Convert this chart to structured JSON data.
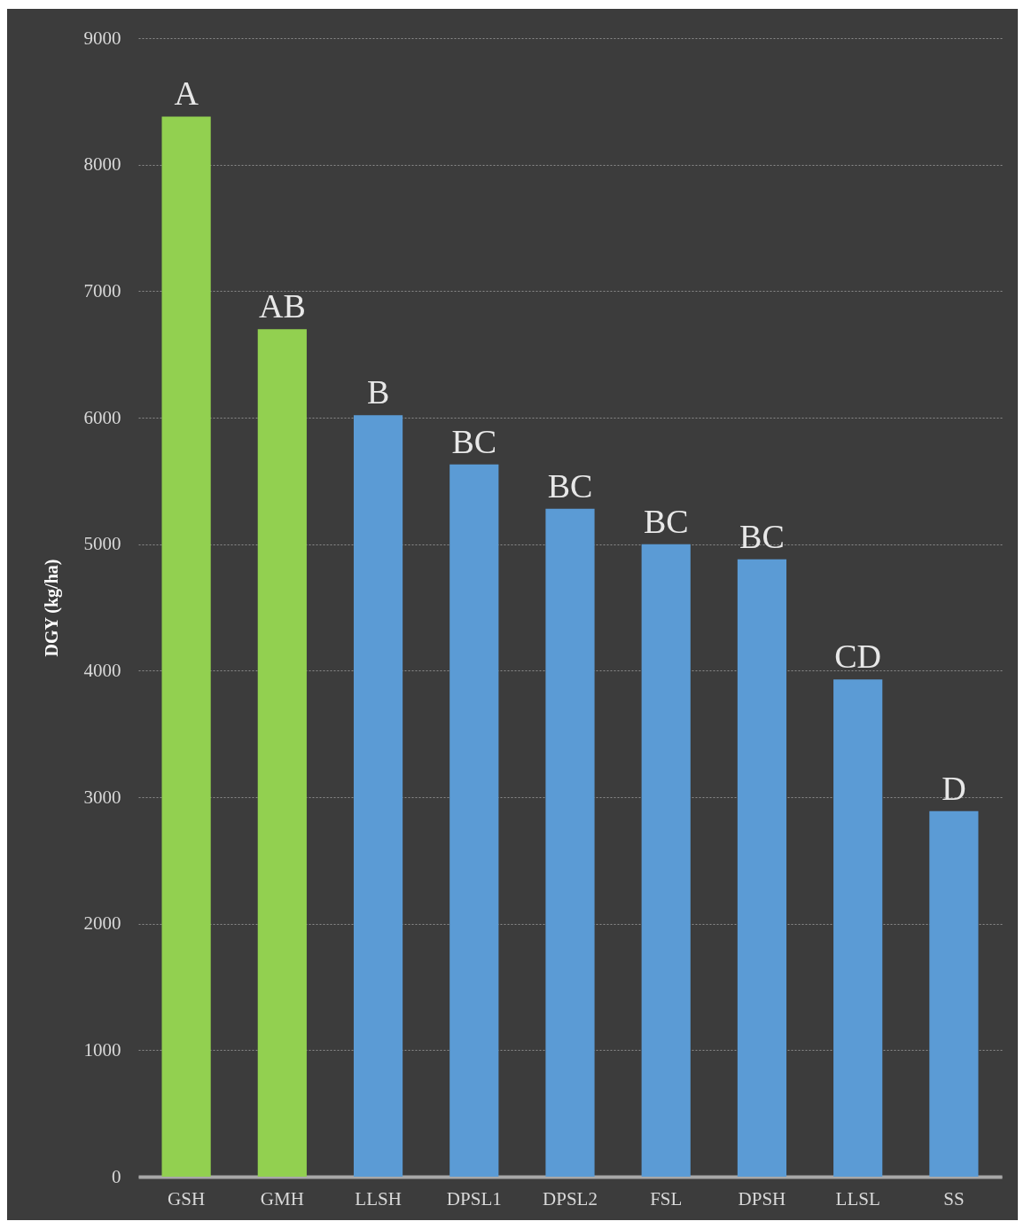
{
  "chart_data": {
    "type": "bar",
    "ylabel": "DGY (kg/ha)",
    "categories": [
      "GSH",
      "GMH",
      "LLSH",
      "DPSL1",
      "DPSL2",
      "FSL",
      "DPSH",
      "LLSL",
      "SS"
    ],
    "values": [
      8380,
      6700,
      6020,
      5630,
      5280,
      5000,
      4880,
      3930,
      2890
    ],
    "colors": [
      "#92d050",
      "#92d050",
      "#5b9bd5",
      "#5b9bd5",
      "#5b9bd5",
      "#5b9bd5",
      "#5b9bd5",
      "#5b9bd5",
      "#5b9bd5"
    ],
    "ylim": [
      0,
      9000
    ],
    "yticks": [
      0,
      1000,
      2000,
      3000,
      4000,
      5000,
      6000,
      7000,
      8000,
      9000
    ],
    "grid": "y",
    "annotations": [
      {
        "text": "A",
        "x": "GSH",
        "y": 8380
      },
      {
        "text": "AB",
        "x": "GMH",
        "y": 6700
      },
      {
        "text": "B",
        "x": "LLSH",
        "y": 6020
      },
      {
        "text": "BC",
        "x": "DPSL1",
        "y": 5630
      },
      {
        "text": "BC",
        "x": "DPSL2",
        "y": 5280
      },
      {
        "text": "BC",
        "x": "FSL",
        "y": 5000
      },
      {
        "text": "BC",
        "x": "DPSH",
        "y": 4880
      },
      {
        "text": "CD",
        "x": "LLSL",
        "y": 3930
      },
      {
        "text": "D",
        "x": "SS",
        "y": 2890
      }
    ]
  }
}
